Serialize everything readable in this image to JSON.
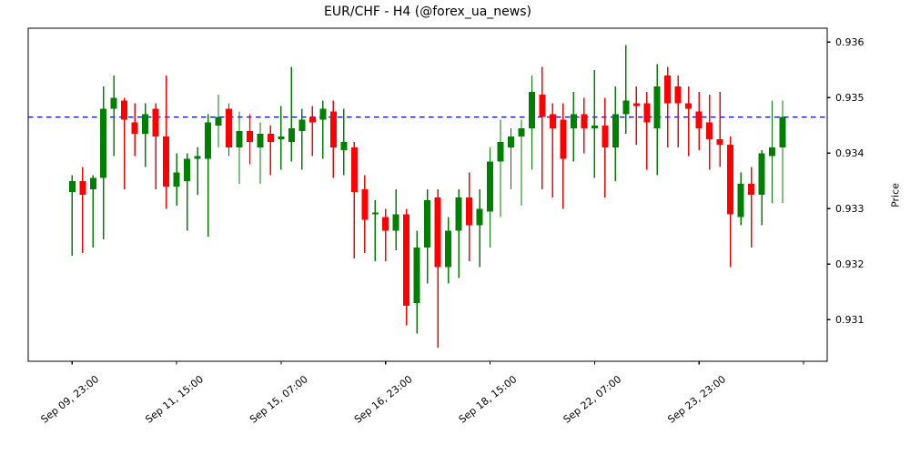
{
  "title": "EUR/CHF - H4 (@forex_ua_news)",
  "chart_data": {
    "type": "candlestick",
    "symbol": "EUR/CHF",
    "timeframe": "H4",
    "title": "EUR/CHF - H4 (@forex_ua_news)",
    "ylabel": "Price",
    "ylim": [
      0.93025,
      0.93625
    ],
    "grid": false,
    "up_color": "#008000",
    "down_color": "#ff0000",
    "axis_color": "#000000",
    "background_color": "#ffffff",
    "reference_line": {
      "price": 0.93465,
      "color": "#0000ff",
      "style": "dashed"
    },
    "y_ticks": [
      {
        "value": 0.936,
        "label": "0.936"
      },
      {
        "value": 0.935,
        "label": "0.935"
      },
      {
        "value": 0.934,
        "label": "0.934"
      },
      {
        "value": 0.933,
        "label": "0.933"
      },
      {
        "value": 0.932,
        "label": "0.932"
      },
      {
        "value": 0.931,
        "label": "0.931"
      }
    ],
    "x_ticks": [
      {
        "index": 0,
        "label": "Sep 09, 23:00"
      },
      {
        "index": 10,
        "label": "Sep 11, 15:00"
      },
      {
        "index": 20,
        "label": "Sep 15, 07:00"
      },
      {
        "index": 30,
        "label": "Sep 16, 23:00"
      },
      {
        "index": 40,
        "label": "Sep 18, 15:00"
      },
      {
        "index": 50,
        "label": "Sep 22, 07:00"
      },
      {
        "index": 60,
        "label": "Sep 23, 23:00"
      },
      {
        "index": 70,
        "label": ""
      }
    ],
    "candles_format": [
      "open",
      "high",
      "low",
      "close"
    ],
    "candles": [
      [
        0.9333,
        0.9336,
        0.93215,
        0.9335
      ],
      [
        0.9335,
        0.93375,
        0.9322,
        0.93325
      ],
      [
        0.93335,
        0.9336,
        0.9323,
        0.93355
      ],
      [
        0.93355,
        0.9352,
        0.93245,
        0.9348
      ],
      [
        0.9348,
        0.9354,
        0.93395,
        0.935
      ],
      [
        0.93495,
        0.935,
        0.93335,
        0.9346
      ],
      [
        0.93455,
        0.9349,
        0.93395,
        0.93435
      ],
      [
        0.93435,
        0.9349,
        0.93375,
        0.9347
      ],
      [
        0.9348,
        0.9349,
        0.93335,
        0.9343
      ],
      [
        0.9343,
        0.9354,
        0.933,
        0.9334
      ],
      [
        0.9334,
        0.934,
        0.93305,
        0.93365
      ],
      [
        0.9335,
        0.934,
        0.9326,
        0.9339
      ],
      [
        0.9339,
        0.9341,
        0.93325,
        0.93395
      ],
      [
        0.9339,
        0.9347,
        0.9325,
        0.93455
      ],
      [
        0.9345,
        0.93505,
        0.9341,
        0.93465
      ],
      [
        0.9348,
        0.9349,
        0.93395,
        0.9341
      ],
      [
        0.9341,
        0.93475,
        0.93345,
        0.9344
      ],
      [
        0.9344,
        0.9347,
        0.9338,
        0.9342
      ],
      [
        0.9341,
        0.93455,
        0.93345,
        0.93435
      ],
      [
        0.93435,
        0.9345,
        0.9336,
        0.9342
      ],
      [
        0.93425,
        0.93485,
        0.9337,
        0.9343
      ],
      [
        0.9342,
        0.93555,
        0.93385,
        0.93445
      ],
      [
        0.9344,
        0.9348,
        0.9337,
        0.9346
      ],
      [
        0.93465,
        0.93485,
        0.93395,
        0.93455
      ],
      [
        0.9346,
        0.93495,
        0.9339,
        0.9348
      ],
      [
        0.93475,
        0.93495,
        0.93355,
        0.9341
      ],
      [
        0.93405,
        0.9348,
        0.9336,
        0.9342
      ],
      [
        0.9341,
        0.9342,
        0.9321,
        0.9333
      ],
      [
        0.93335,
        0.9336,
        0.9322,
        0.9328
      ],
      [
        0.9329,
        0.93315,
        0.93205,
        0.93293
      ],
      [
        0.93285,
        0.933,
        0.93205,
        0.9326
      ],
      [
        0.9326,
        0.93335,
        0.93225,
        0.9329
      ],
      [
        0.9329,
        0.933,
        0.9309,
        0.93125
      ],
      [
        0.9313,
        0.9326,
        0.93075,
        0.9323
      ],
      [
        0.9323,
        0.93335,
        0.93165,
        0.93315
      ],
      [
        0.9332,
        0.93335,
        0.9305,
        0.93195
      ],
      [
        0.93195,
        0.93285,
        0.93165,
        0.9326
      ],
      [
        0.9326,
        0.93335,
        0.93175,
        0.9332
      ],
      [
        0.9332,
        0.93365,
        0.93205,
        0.9327
      ],
      [
        0.9327,
        0.93335,
        0.93195,
        0.933
      ],
      [
        0.93295,
        0.9341,
        0.9323,
        0.93385
      ],
      [
        0.93385,
        0.9346,
        0.93285,
        0.9342
      ],
      [
        0.9341,
        0.93445,
        0.93335,
        0.9343
      ],
      [
        0.9343,
        0.9346,
        0.93305,
        0.93445
      ],
      [
        0.93445,
        0.9354,
        0.9337,
        0.9351
      ],
      [
        0.93505,
        0.93555,
        0.93335,
        0.93465
      ],
      [
        0.9347,
        0.9349,
        0.9332,
        0.93445
      ],
      [
        0.9346,
        0.9349,
        0.933,
        0.9339
      ],
      [
        0.93445,
        0.9351,
        0.93385,
        0.9347
      ],
      [
        0.9347,
        0.935,
        0.934,
        0.93445
      ],
      [
        0.93445,
        0.9355,
        0.93355,
        0.9345
      ],
      [
        0.9345,
        0.935,
        0.9332,
        0.9341
      ],
      [
        0.9341,
        0.9352,
        0.9335,
        0.9347
      ],
      [
        0.9347,
        0.93595,
        0.93435,
        0.93495
      ],
      [
        0.9349,
        0.9352,
        0.93415,
        0.93485
      ],
      [
        0.9349,
        0.9351,
        0.9337,
        0.93455
      ],
      [
        0.93445,
        0.9356,
        0.9336,
        0.9352
      ],
      [
        0.9354,
        0.93555,
        0.9341,
        0.9349
      ],
      [
        0.9352,
        0.9354,
        0.9341,
        0.9349
      ],
      [
        0.9349,
        0.9352,
        0.93395,
        0.9348
      ],
      [
        0.93475,
        0.9351,
        0.93405,
        0.93445
      ],
      [
        0.93455,
        0.93505,
        0.9337,
        0.93425
      ],
      [
        0.93425,
        0.9351,
        0.93375,
        0.93415
      ],
      [
        0.93415,
        0.9343,
        0.93195,
        0.9329
      ],
      [
        0.93285,
        0.93365,
        0.9327,
        0.93345
      ],
      [
        0.93345,
        0.93375,
        0.9323,
        0.93325
      ],
      [
        0.93325,
        0.93405,
        0.9327,
        0.934
      ],
      [
        0.93395,
        0.93495,
        0.9331,
        0.9341
      ],
      [
        0.9341,
        0.93495,
        0.9331,
        0.93465
      ]
    ]
  }
}
